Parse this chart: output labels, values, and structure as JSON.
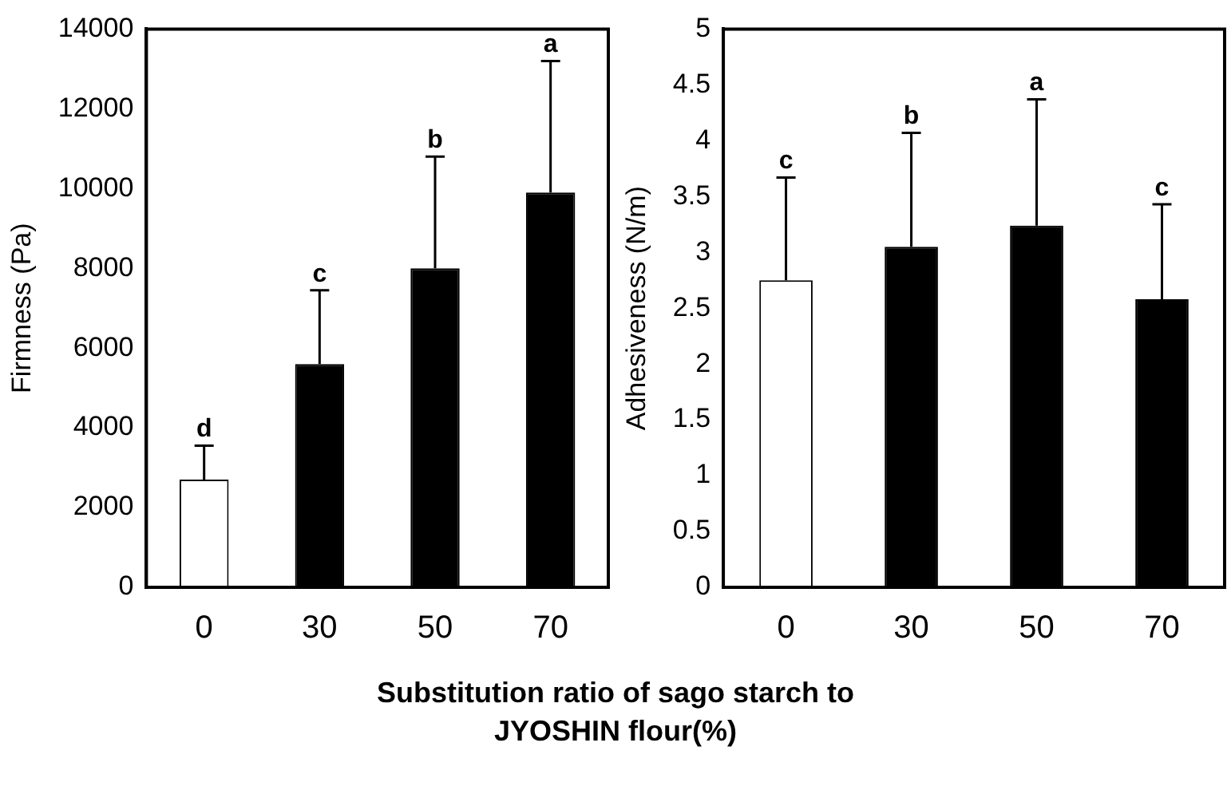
{
  "chart_data": [
    {
      "type": "bar",
      "ylabel": "Firmness (Pa)",
      "xlabel": "Substitution ratio of sago starch to JYOSHIN flour(%)",
      "categories": [
        "0",
        "30",
        "50",
        "70"
      ],
      "values": [
        2700,
        5600,
        8000,
        9900
      ],
      "colors": [
        "#ffffff",
        "#000000",
        "#000000",
        "#000000"
      ],
      "errors": [
        [
          2700,
          3550
        ],
        [
          5600,
          7450
        ],
        [
          8000,
          10800
        ],
        [
          9900,
          13200
        ]
      ],
      "ylim": [
        0,
        14000
      ],
      "yticks": [
        0,
        2000,
        4000,
        6000,
        8000,
        10000,
        12000,
        14000
      ],
      "grid": false,
      "annotations": [
        {
          "text": "d",
          "x": "0",
          "y": 3550
        },
        {
          "text": "c",
          "x": "30",
          "y": 7450
        },
        {
          "text": "b",
          "x": "50",
          "y": 10800
        },
        {
          "text": "a",
          "x": "70",
          "y": 13200
        }
      ]
    },
    {
      "type": "bar",
      "ylabel": "Adhesiveness (N/m)",
      "categories": [
        "0",
        "30",
        "50",
        "70"
      ],
      "values": [
        2.75,
        3.05,
        3.24,
        2.58
      ],
      "colors": [
        "#ffffff",
        "#000000",
        "#000000",
        "#000000"
      ],
      "errors": [
        [
          2.75,
          3.67
        ],
        [
          3.05,
          4.07
        ],
        [
          3.24,
          4.37
        ],
        [
          2.58,
          3.43
        ]
      ],
      "ylim": [
        0,
        5
      ],
      "yticks": [
        0,
        0.5,
        1,
        1.5,
        2,
        2.5,
        3,
        3.5,
        4,
        4.5,
        5
      ],
      "grid": false,
      "annotations": [
        {
          "text": "c",
          "x": "0",
          "y": 3.67
        },
        {
          "text": "b",
          "x": "30",
          "y": 4.07
        },
        {
          "text": "a",
          "x": "50",
          "y": 4.37
        },
        {
          "text": "c",
          "x": "70",
          "y": 3.43
        }
      ]
    }
  ]
}
